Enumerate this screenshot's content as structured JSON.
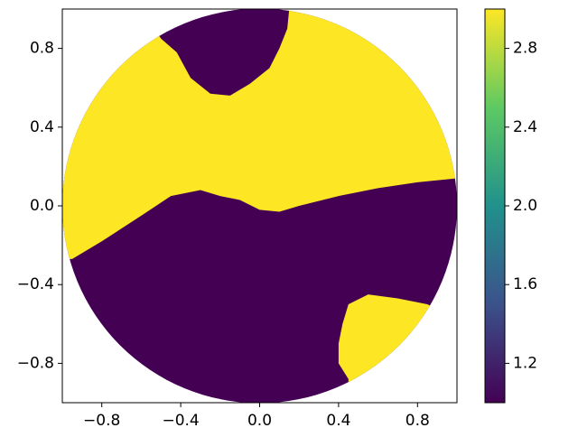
{
  "chart_data": {
    "type": "contourf",
    "xlim": [
      -1,
      1
    ],
    "ylim": [
      -1,
      1
    ],
    "xticks": [
      {
        "value": -0.8,
        "label": "−0.8"
      },
      {
        "value": -0.4,
        "label": "−0.4"
      },
      {
        "value": 0,
        "label": "0.0"
      },
      0.4,
      0.8
    ],
    "yticks": [
      {
        "value": -0.8,
        "label": "−0.8"
      },
      {
        "value": -0.4,
        "label": "−0.4"
      },
      {
        "value": 0,
        "label": "0.0"
      },
      0.4,
      0.8
    ],
    "colormap": "viridis",
    "clim": [
      1,
      3
    ],
    "cticks": [
      1.2,
      1.6,
      {
        "value": 2,
        "label": "2.0"
      },
      2.4,
      2.8
    ],
    "regions": [
      {
        "value": 1,
        "x": [
          -1,
          1,
          1,
          -1
        ],
        "y": [
          -1,
          -1,
          1,
          1
        ]
      },
      {
        "value": 3,
        "x": [
          -1,
          -0.95,
          -0.8,
          -0.6,
          -0.45,
          -0.3,
          -0.2,
          -0.1,
          0,
          0.1,
          0.2,
          0.4,
          0.6,
          0.8,
          1,
          1,
          0.15,
          0.14,
          0.1,
          0.05,
          -0.05,
          -0.15,
          -0.25,
          -0.35,
          -0.42,
          -0.5,
          -0.6,
          -1
        ],
        "y": [
          -0.27,
          -0.27,
          -0.18,
          -0.05,
          0.05,
          0.08,
          0.05,
          0.03,
          -0.02,
          -0.03,
          0,
          0.05,
          0.09,
          0.12,
          0.14,
          1,
          1,
          0.9,
          0.8,
          0.7,
          0.62,
          0.56,
          0.57,
          0.65,
          0.78,
          0.85,
          1,
          1
        ]
      },
      {
        "value": 3,
        "x": [
          0.4,
          0.42,
          0.45,
          0.55,
          0.7,
          0.85,
          0.95,
          1,
          1,
          0.45,
          0.45,
          0.4
        ],
        "y": [
          -0.7,
          -0.6,
          -0.5,
          -0.45,
          -0.47,
          -0.5,
          -0.55,
          -0.55,
          -1,
          -1,
          -0.88,
          -0.8
        ]
      }
    ]
  }
}
